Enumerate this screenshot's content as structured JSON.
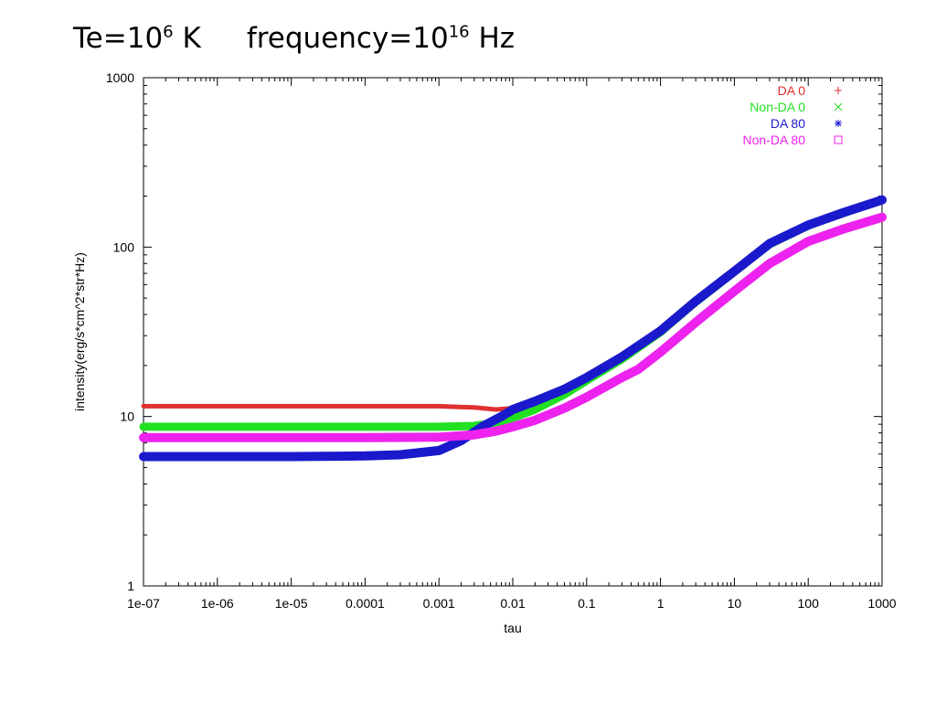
{
  "slide": {
    "title_te_prefix": "Te=10",
    "title_te_exp": "6",
    "title_te_unit": " K",
    "title_freq_prefix": "frequency=10",
    "title_freq_exp": "16",
    "title_freq_unit": " Hz"
  },
  "chart_data": {
    "type": "line",
    "xscale": "log",
    "yscale": "log",
    "xlim": [
      1e-07,
      1000
    ],
    "ylim": [
      1,
      1000
    ],
    "xlabel": "tau",
    "ylabel": "intensity(erg/s*cm^2*str*Hz)",
    "x_tick_labels": [
      "1e-07",
      "1e-06",
      "1e-05",
      "0.0001",
      "0.001",
      "0.01",
      "0.1",
      "1",
      "10",
      "100",
      "1000"
    ],
    "y_tick_labels": [
      "1",
      "10",
      "100",
      "1000"
    ],
    "legend_position": "top-right",
    "grid": false,
    "series": [
      {
        "name": "DA 0",
        "color": "#e03030",
        "marker": "+",
        "x": [
          1e-07,
          1e-06,
          1e-05,
          0.0001,
          0.001,
          0.003,
          0.006,
          0.01,
          0.02,
          0.05,
          0.1,
          0.3,
          1,
          3,
          10,
          30,
          100,
          300,
          1000
        ],
        "y": [
          11.5,
          11.5,
          11.5,
          11.5,
          11.5,
          11.3,
          11.0,
          11.2,
          11.9,
          14.0,
          16.5,
          22.0,
          32.0,
          48.0,
          72.0,
          105,
          135,
          160,
          190
        ]
      },
      {
        "name": "Non-DA 0",
        "color": "#22e022",
        "marker": "x",
        "x": [
          1e-07,
          1e-06,
          1e-05,
          0.0001,
          0.001,
          0.003,
          0.006,
          0.01,
          0.02,
          0.05,
          0.1,
          0.3,
          1,
          3,
          10,
          30,
          100,
          300,
          1000
        ],
        "y": [
          8.7,
          8.7,
          8.7,
          8.7,
          8.7,
          8.8,
          9.2,
          9.8,
          11.0,
          13.5,
          16.3,
          21.8,
          31.5,
          47.5,
          71.5,
          104,
          134,
          159,
          190
        ]
      },
      {
        "name": "DA 80",
        "color": "#1a1acc",
        "marker": "*",
        "x": [
          1e-07,
          1e-06,
          1e-05,
          0.0001,
          0.0003,
          0.001,
          0.002,
          0.004,
          0.007,
          0.01,
          0.02,
          0.05,
          0.1,
          0.3,
          1,
          3,
          10,
          30,
          100,
          300,
          1000
        ],
        "y": [
          5.8,
          5.8,
          5.8,
          5.85,
          5.95,
          6.3,
          7.2,
          8.8,
          10.0,
          11.0,
          12.3,
          14.5,
          17.0,
          22.5,
          32.0,
          48.0,
          72.0,
          105,
          135,
          160,
          190
        ]
      },
      {
        "name": "Non-DA 80",
        "color": "#ee22ee",
        "marker": "square",
        "x": [
          1e-07,
          1e-06,
          1e-05,
          0.0001,
          0.001,
          0.003,
          0.006,
          0.01,
          0.02,
          0.05,
          0.1,
          0.3,
          0.5,
          1,
          3,
          10,
          30,
          100,
          300,
          1000
        ],
        "y": [
          7.5,
          7.5,
          7.5,
          7.5,
          7.55,
          7.8,
          8.2,
          8.7,
          9.5,
          11.2,
          13.0,
          17.0,
          19.0,
          24.0,
          36.0,
          55.0,
          80.0,
          108,
          128,
          150
        ]
      }
    ]
  }
}
